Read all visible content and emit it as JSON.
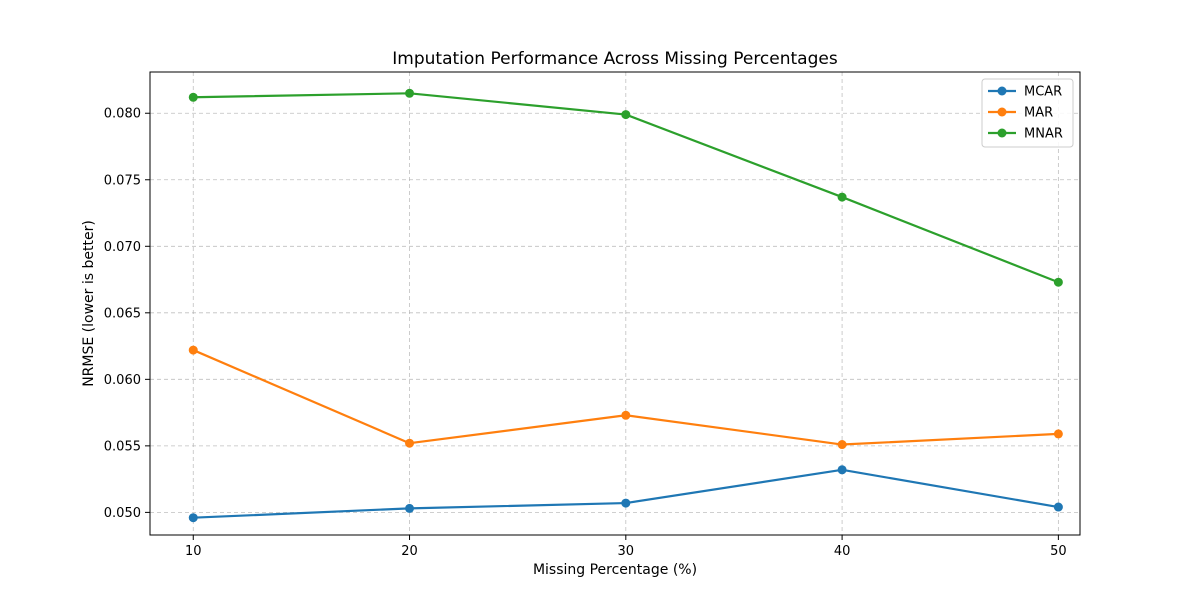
{
  "chart_data": {
    "type": "line",
    "title": "Imputation Performance Across Missing Percentages",
    "xlabel": "Missing Percentage (%)",
    "ylabel": "NRMSE (lower is better)",
    "x": [
      10,
      20,
      30,
      40,
      50
    ],
    "x_ticks": [
      "10",
      "20",
      "30",
      "40",
      "50"
    ],
    "xlim": [
      8,
      51
    ],
    "ylim": [
      0.0483,
      0.0831
    ],
    "y_ticks": [
      0.05,
      0.055,
      0.06,
      0.065,
      0.07,
      0.075,
      0.08
    ],
    "y_tick_labels": [
      "0.050",
      "0.055",
      "0.060",
      "0.065",
      "0.070",
      "0.075",
      "0.080"
    ],
    "grid": true,
    "legend_position": "top-right",
    "series": [
      {
        "name": "MCAR",
        "color": "#1f77b4",
        "values": [
          0.0496,
          0.0503,
          0.0507,
          0.0532,
          0.0504
        ]
      },
      {
        "name": "MAR",
        "color": "#ff7f0e",
        "values": [
          0.0622,
          0.0552,
          0.0573,
          0.0551,
          0.0559
        ]
      },
      {
        "name": "MNAR",
        "color": "#2ca02c",
        "values": [
          0.0812,
          0.0815,
          0.0799,
          0.0737,
          0.0673
        ]
      }
    ]
  }
}
